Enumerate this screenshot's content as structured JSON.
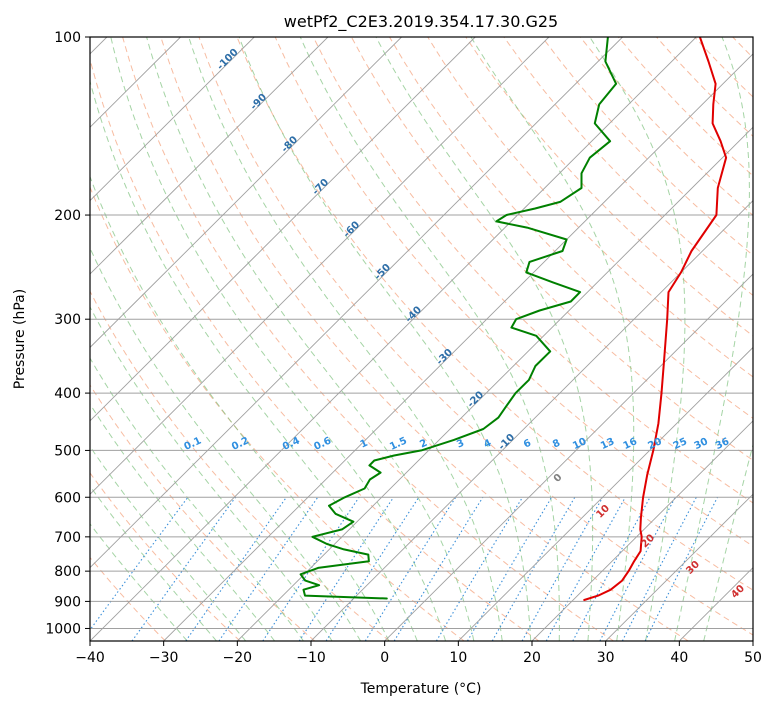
{
  "chart_data": {
    "type": "line",
    "title": "wetPf2_C2E3.2019.354.17.30.G25",
    "xlabel": "Temperature (°C)",
    "ylabel": "Pressure (hPa)",
    "xlim": [
      -40,
      50
    ],
    "ylim": [
      1050,
      100
    ],
    "y_scale": "log",
    "grid": true,
    "x_ticks": [
      -40,
      -30,
      -20,
      -10,
      0,
      10,
      20,
      30,
      40,
      50
    ],
    "y_ticks": [
      100,
      200,
      300,
      400,
      500,
      600,
      700,
      800,
      900,
      1000
    ],
    "skew": "skew-T log-p",
    "series": [
      {
        "color": "#e00000",
        "p": [
          895,
          880,
          860,
          830,
          800,
          770,
          740,
          720,
          700,
          680,
          650,
          600,
          550,
          500,
          450,
          400,
          350,
          300,
          270,
          250,
          230,
          200,
          180,
          160,
          150,
          140,
          130,
          120,
          110,
          100
        ],
        "t": [
          21.5,
          22.8,
          23.7,
          24.0,
          23.6,
          23.0,
          22.5,
          21.6,
          20.7,
          19.5,
          18.0,
          15.5,
          13.0,
          10.5,
          7.5,
          3.8,
          -0.5,
          -5.5,
          -9.0,
          -10.0,
          -11.5,
          -13.0,
          -16.5,
          -19.5,
          -22.5,
          -26.0,
          -28.5,
          -31.0,
          -35.0,
          -39.5
        ]
      },
      {
        "color": "#008000",
        "p": [
          890,
          880,
          860,
          845,
          830,
          810,
          790,
          770,
          750,
          735,
          720,
          700,
          680,
          660,
          640,
          620,
          600,
          580,
          560,
          545,
          530,
          520,
          510,
          500,
          480,
          460,
          440,
          420,
          400,
          380,
          360,
          340,
          320,
          310,
          300,
          290,
          280,
          270,
          260,
          250,
          240,
          230,
          220,
          210,
          205,
          200,
          195,
          190,
          180,
          170,
          160,
          150,
          140,
          130,
          120,
          110,
          100
        ],
        "t": [
          -5.5,
          -17.0,
          -18.0,
          -16.5,
          -19.0,
          -20.5,
          -19.0,
          -13.0,
          -14.0,
          -18.0,
          -21.0,
          -24.0,
          -21.0,
          -20.5,
          -24.0,
          -26.0,
          -25.0,
          -23.5,
          -24.0,
          -23.5,
          -26.0,
          -26.0,
          -24.0,
          -21.0,
          -18.0,
          -15.5,
          -15.0,
          -15.5,
          -16.0,
          -16.0,
          -17.0,
          -17.0,
          -21.0,
          -25.5,
          -26.0,
          -24.0,
          -21.0,
          -21.0,
          -26.0,
          -31.0,
          -32.0,
          -29.0,
          -30.0,
          -37.0,
          -42.0,
          -41.5,
          -38.5,
          -36.0,
          -35.0,
          -37.0,
          -38.0,
          -37.5,
          -42.0,
          -44.0,
          -44.5,
          -49.0,
          -52.0
        ]
      }
    ],
    "dry_adiabat_labels": [
      "-100",
      "-90",
      "-80",
      "-70",
      "-60",
      "-50",
      "-40",
      "-30",
      "-20",
      "-10"
    ],
    "mixing_ratio_labels": [
      "0.1",
      "0.2",
      "0.4",
      "0.6",
      "1",
      "1.5",
      "2",
      "3",
      "4",
      "6",
      "8",
      "10",
      "13",
      "16",
      "20",
      "25",
      "30",
      "36"
    ],
    "moist_adiabat_labels": [
      "0",
      "10",
      "20",
      "30",
      "40"
    ],
    "colors": {
      "temperature": "#e00000",
      "dewpoint": "#008000",
      "isotherm": "#a0a0a0",
      "dry_adiabat": "#f4a582",
      "moist_adiabat": "#7fc27f",
      "mixing_ratio": "#3a8fd9",
      "dry_adiabat_label": "#2f6fa8",
      "mixing_ratio_label": "#2f8fe0",
      "moist_adiabat_label": "#d03030",
      "zero_label": "#808080"
    }
  }
}
